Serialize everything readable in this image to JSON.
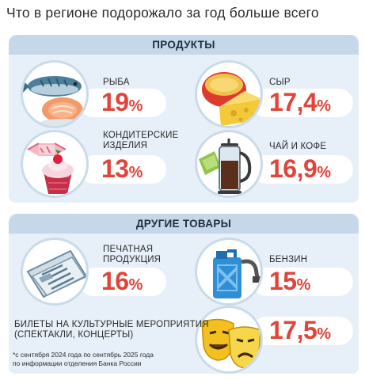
{
  "title": "Что в регионе подорожало за год больше всего",
  "sections": {
    "food": "ПРОДУКТЫ",
    "other": "ДРУГИЕ ТОВАРЫ"
  },
  "items": {
    "fish": {
      "label": "РЫБА",
      "value": "19",
      "unit": "%"
    },
    "cheese": {
      "label": "СЫР",
      "value": "17,4",
      "unit": "%"
    },
    "confectionery": {
      "label_line1": "КОНДИТЕРСКИЕ",
      "label_line2": "ИЗДЕЛИЯ",
      "value": "13",
      "unit": "%"
    },
    "tea_coffee": {
      "label": "ЧАЙ И КОФЕ",
      "value": "16,9",
      "unit": "%"
    },
    "print": {
      "label_line1": "ПЕЧАТНАЯ",
      "label_line2": "ПРОДУКЦИЯ",
      "value": "16",
      "unit": "%"
    },
    "gasoline": {
      "label": "БЕНЗИН",
      "value": "15",
      "unit": "%"
    },
    "culture": {
      "label_line1": "БИЛЕТЫ НА КУЛЬТУРНЫЕ МЕРОПРИЯТИЯ",
      "label_line2": "(СПЕКТАКЛИ, КОНЦЕРТЫ)",
      "value": "17,5",
      "unit": "%"
    }
  },
  "footnote": {
    "line1": "*с сентября 2024 года по сентябрь 2025 года",
    "line2": "по информации отделения Банка России"
  },
  "colors": {
    "value": "#e0443b",
    "panel": "#e7f0f8",
    "header": "#c5d8ea"
  },
  "icons": [
    "fish-icon",
    "cheese-icon",
    "cake-icon",
    "french-press-icon",
    "newspaper-icon",
    "fuel-canister-icon",
    "theater-masks-icon"
  ]
}
